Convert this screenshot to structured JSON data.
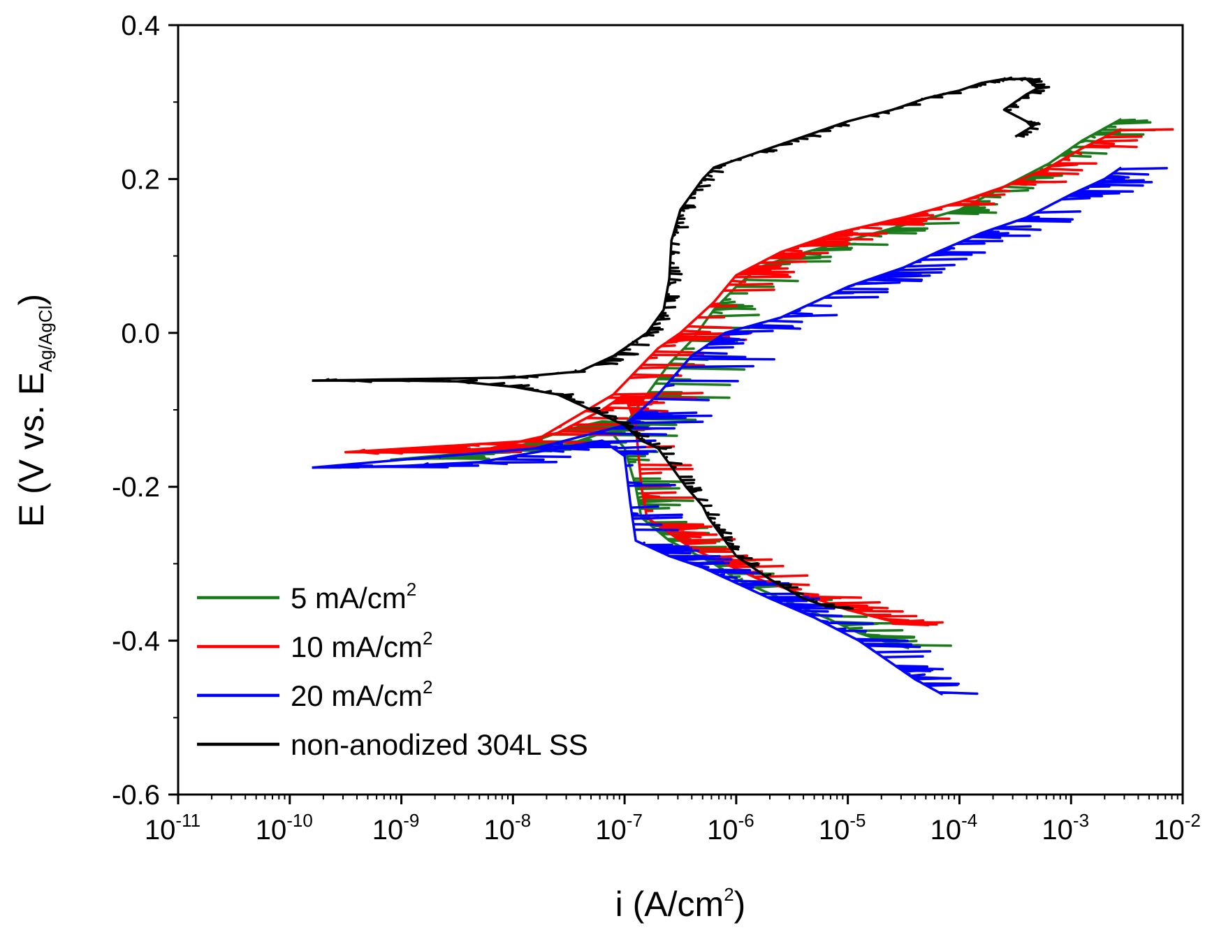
{
  "chart_data": {
    "type": "line",
    "title": "",
    "xlabel": "i (A/cm2)",
    "ylabel": "E (V vs. EAg/AgCl)",
    "xscale": "log",
    "xlim_exp": [
      -11,
      -2
    ],
    "ylim": [
      -0.6,
      0.4
    ],
    "grid": false,
    "legend_position": "bottom-left",
    "x_ticks": [
      {
        "base": "10",
        "exp": "-11"
      },
      {
        "base": "10",
        "exp": "-10"
      },
      {
        "base": "10",
        "exp": "-9"
      },
      {
        "base": "10",
        "exp": "-8"
      },
      {
        "base": "10",
        "exp": "-7"
      },
      {
        "base": "10",
        "exp": "-6"
      },
      {
        "base": "10",
        "exp": "-5"
      },
      {
        "base": "10",
        "exp": "-4"
      },
      {
        "base": "10",
        "exp": "-3"
      },
      {
        "base": "10",
        "exp": "-2"
      }
    ],
    "y_ticks": [
      {
        "value": 0.4,
        "label": "0.4"
      },
      {
        "value": 0.2,
        "label": "0.2"
      },
      {
        "value": 0.0,
        "label": "0.0"
      },
      {
        "value": -0.2,
        "label": "-0.2"
      },
      {
        "value": -0.4,
        "label": "-0.4"
      },
      {
        "value": -0.6,
        "label": "-0.6"
      }
    ],
    "series": [
      {
        "name": "5 mA/cm2",
        "label": "5 mA/cm",
        "sup": "2",
        "color": "#1a7a1a",
        "noise": 0.5,
        "cathodic": [
          [
            -9.1,
            -0.165
          ],
          [
            -8.6,
            -0.16
          ],
          [
            -8.0,
            -0.15
          ],
          [
            -7.5,
            -0.125
          ],
          [
            -7.2,
            -0.115
          ],
          [
            -7.0,
            -0.15
          ],
          [
            -6.9,
            -0.2
          ],
          [
            -6.85,
            -0.24
          ],
          [
            -6.6,
            -0.27
          ],
          [
            -6.4,
            -0.285
          ],
          [
            -6.2,
            -0.3
          ],
          [
            -6.0,
            -0.32
          ],
          [
            -5.6,
            -0.345
          ],
          [
            -5.2,
            -0.37
          ],
          [
            -4.9,
            -0.39
          ],
          [
            -4.7,
            -0.4
          ],
          [
            -4.45,
            -0.41
          ]
        ],
        "anodic": [
          [
            -9.1,
            -0.165
          ],
          [
            -7.5,
            -0.145
          ],
          [
            -7.0,
            -0.12
          ],
          [
            -6.8,
            -0.08
          ],
          [
            -6.6,
            -0.04
          ],
          [
            -6.4,
            -0.01
          ],
          [
            -6.2,
            0.03
          ],
          [
            -6.0,
            0.06
          ],
          [
            -5.8,
            0.085
          ],
          [
            -5.5,
            0.1
          ],
          [
            -5.0,
            0.12
          ],
          [
            -4.5,
            0.14
          ],
          [
            -4.0,
            0.16
          ],
          [
            -3.6,
            0.19
          ],
          [
            -3.2,
            0.22
          ],
          [
            -2.9,
            0.25
          ],
          [
            -2.55,
            0.278
          ]
        ]
      },
      {
        "name": "10 mA/cm2",
        "label": "10 mA/cm",
        "sup": "2",
        "color": "#ff0000",
        "noise": 0.5,
        "cathodic": [
          [
            -9.5,
            -0.155
          ],
          [
            -8.8,
            -0.155
          ],
          [
            -8.2,
            -0.15
          ],
          [
            -7.6,
            -0.13
          ],
          [
            -7.2,
            -0.1
          ],
          [
            -7.0,
            -0.08
          ],
          [
            -6.9,
            -0.12
          ],
          [
            -6.85,
            -0.2
          ],
          [
            -6.8,
            -0.24
          ],
          [
            -6.6,
            -0.26
          ],
          [
            -6.4,
            -0.28
          ],
          [
            -6.1,
            -0.3
          ],
          [
            -5.8,
            -0.32
          ],
          [
            -5.4,
            -0.34
          ],
          [
            -5.0,
            -0.36
          ],
          [
            -4.6,
            -0.375
          ],
          [
            -4.6,
            -0.378
          ]
        ],
        "anodic": [
          [
            -9.5,
            -0.155
          ],
          [
            -7.8,
            -0.14
          ],
          [
            -7.1,
            -0.08
          ],
          [
            -6.7,
            -0.02
          ],
          [
            -6.5,
            0.0
          ],
          [
            -6.2,
            0.04
          ],
          [
            -6.0,
            0.075
          ],
          [
            -5.8,
            0.09
          ],
          [
            -5.6,
            0.105
          ],
          [
            -5.3,
            0.12
          ],
          [
            -5.1,
            0.13
          ],
          [
            -4.5,
            0.15
          ],
          [
            -4.0,
            0.17
          ],
          [
            -3.6,
            0.19
          ],
          [
            -3.2,
            0.215
          ],
          [
            -2.9,
            0.24
          ],
          [
            -2.55,
            0.265
          ]
        ]
      },
      {
        "name": "20 mA/cm2",
        "label": "20 mA/cm",
        "sup": "2",
        "color": "#0000ff",
        "noise": 0.5,
        "cathodic": [
          [
            -9.8,
            -0.175
          ],
          [
            -9.0,
            -0.173
          ],
          [
            -8.3,
            -0.168
          ],
          [
            -7.6,
            -0.15
          ],
          [
            -7.2,
            -0.14
          ],
          [
            -7.0,
            -0.16
          ],
          [
            -6.95,
            -0.22
          ],
          [
            -6.9,
            -0.27
          ],
          [
            -6.6,
            -0.29
          ],
          [
            -6.3,
            -0.305
          ],
          [
            -6.0,
            -0.325
          ],
          [
            -5.7,
            -0.345
          ],
          [
            -5.3,
            -0.37
          ],
          [
            -4.9,
            -0.4
          ],
          [
            -4.6,
            -0.43
          ],
          [
            -4.4,
            -0.45
          ],
          [
            -4.15,
            -0.47
          ]
        ],
        "anodic": [
          [
            -9.8,
            -0.175
          ],
          [
            -7.8,
            -0.15
          ],
          [
            -7.0,
            -0.12
          ],
          [
            -6.7,
            -0.08
          ],
          [
            -6.4,
            -0.03
          ],
          [
            -6.1,
            0.0
          ],
          [
            -5.6,
            0.02
          ],
          [
            -5.3,
            0.04
          ],
          [
            -5.0,
            0.06
          ],
          [
            -4.5,
            0.085
          ],
          [
            -4.2,
            0.105
          ],
          [
            -3.8,
            0.13
          ],
          [
            -3.4,
            0.15
          ],
          [
            -3.0,
            0.18
          ],
          [
            -2.7,
            0.2
          ],
          [
            -2.55,
            0.215
          ]
        ]
      },
      {
        "name": "non-anodized 304L SS",
        "label": "non-anodized 304L SS",
        "sup": "",
        "color": "#000000",
        "noise": 0.12,
        "cathodic": [
          [
            -9.8,
            -0.062
          ],
          [
            -9.0,
            -0.062
          ],
          [
            -8.5,
            -0.063
          ],
          [
            -8.0,
            -0.07
          ],
          [
            -7.6,
            -0.08
          ],
          [
            -7.3,
            -0.1
          ],
          [
            -7.0,
            -0.12
          ],
          [
            -6.85,
            -0.14
          ],
          [
            -6.7,
            -0.15
          ],
          [
            -6.6,
            -0.17
          ],
          [
            -6.45,
            -0.2
          ],
          [
            -6.3,
            -0.225
          ],
          [
            -6.25,
            -0.24
          ],
          [
            -6.15,
            -0.26
          ],
          [
            -6.0,
            -0.29
          ],
          [
            -5.7,
            -0.32
          ],
          [
            -5.4,
            -0.345
          ],
          [
            -5.2,
            -0.355
          ],
          [
            -5.0,
            -0.358
          ]
        ],
        "anodic": [
          [
            -9.8,
            -0.062
          ],
          [
            -8.0,
            -0.058
          ],
          [
            -7.4,
            -0.05
          ],
          [
            -7.1,
            -0.03
          ],
          [
            -6.8,
            0.0
          ],
          [
            -6.65,
            0.03
          ],
          [
            -6.6,
            0.07
          ],
          [
            -6.58,
            0.12
          ],
          [
            -6.5,
            0.16
          ],
          [
            -6.4,
            0.18
          ],
          [
            -6.3,
            0.2
          ],
          [
            -6.2,
            0.215
          ],
          [
            -6.0,
            0.225
          ],
          [
            -5.7,
            0.24
          ],
          [
            -5.3,
            0.26
          ],
          [
            -5.0,
            0.275
          ],
          [
            -4.6,
            0.29
          ],
          [
            -4.3,
            0.305
          ],
          [
            -4.0,
            0.315
          ],
          [
            -3.8,
            0.325
          ],
          [
            -3.6,
            0.33
          ],
          [
            -3.4,
            0.33
          ],
          [
            -3.3,
            0.318
          ],
          [
            -3.4,
            0.31
          ],
          [
            -3.6,
            0.29
          ],
          [
            -3.4,
            0.275
          ],
          [
            -3.35,
            0.268
          ],
          [
            -3.5,
            0.255
          ]
        ]
      }
    ]
  }
}
